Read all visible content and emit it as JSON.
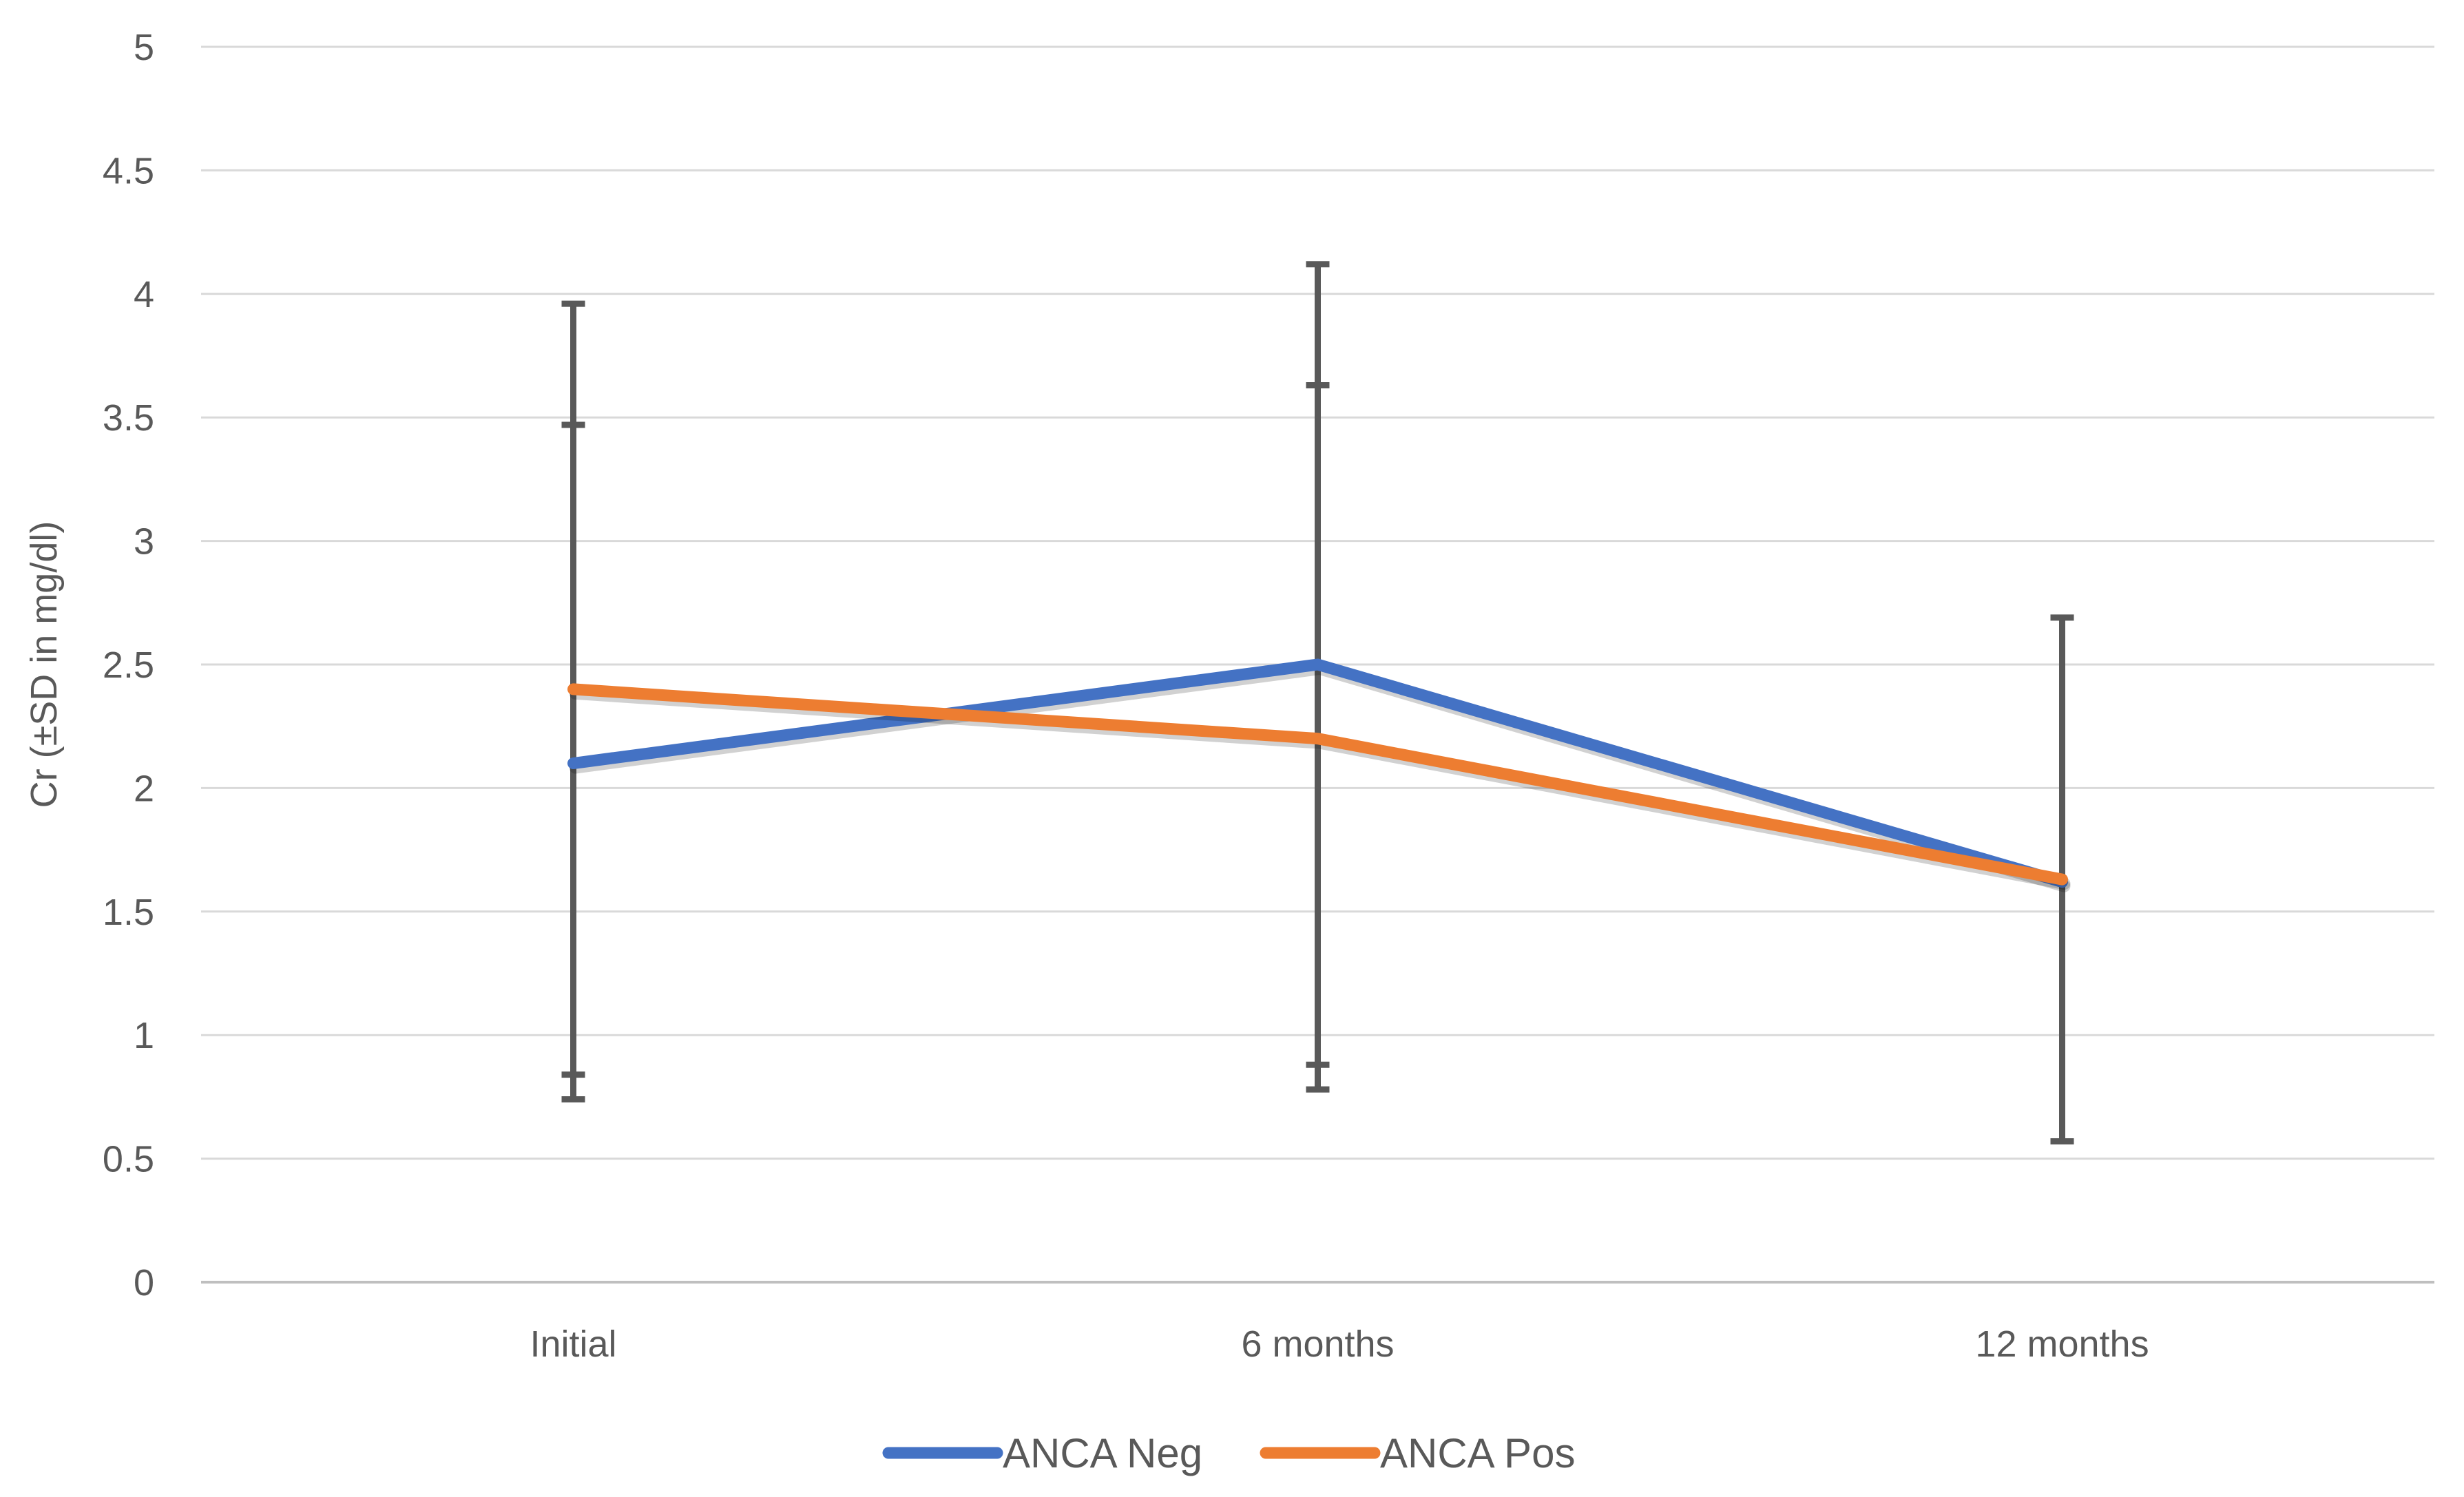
{
  "chart_data": {
    "type": "line",
    "title": "",
    "xlabel": "",
    "ylabel": "Cr (±SD in mg/dl)",
    "categories": [
      "Initial",
      "6 months",
      "12 months"
    ],
    "ylim": [
      0,
      5
    ],
    "yticks": [
      "0",
      "0.5",
      "1",
      "1.5",
      "2",
      "2.5",
      "3",
      "3.5",
      "4",
      "4.5",
      "5"
    ],
    "grid": true,
    "legend_position": "bottom",
    "series": [
      {
        "name": "ANCA Neg",
        "color": "#4472C4",
        "values": [
          2.1,
          2.5,
          1.62
        ],
        "error_low": [
          0.84,
          0.88,
          0.57
        ],
        "error_high": [
          3.47,
          3.63,
          2.69
        ]
      },
      {
        "name": "ANCA Pos",
        "color": "#ED7D31",
        "values": [
          2.4,
          2.2,
          1.63
        ],
        "error_low": [
          0.74,
          0.78,
          null
        ],
        "error_high": [
          3.96,
          4.12,
          null
        ]
      }
    ],
    "error_bar_color": "#595959",
    "gridline_color": "#D9D9D9"
  }
}
